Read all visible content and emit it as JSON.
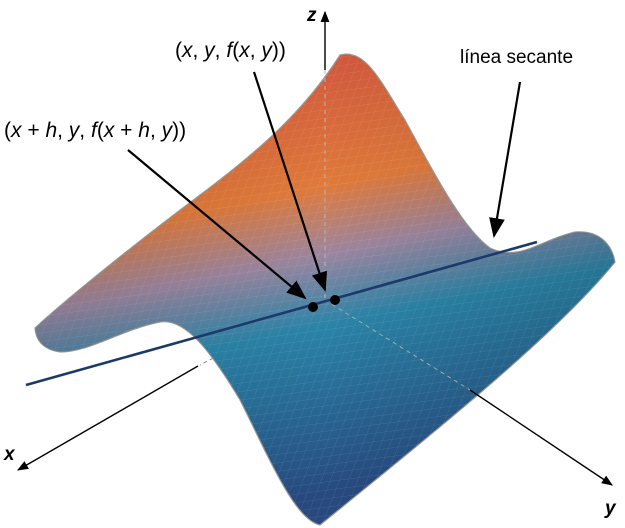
{
  "axes": {
    "x": "x",
    "y": "y",
    "z": "z"
  },
  "labels": {
    "point_a": {
      "open": "(",
      "x": "x",
      "sep1": ", ",
      "y": "y",
      "sep2": ", ",
      "f": "f",
      "open2": "(",
      "x2": "x",
      "sep3": ", ",
      "y2": "y",
      "close": "))"
    },
    "point_b": {
      "open": "(",
      "x": "x",
      "plus": " + ",
      "h": "h",
      "sep1": ", ",
      "y": "y",
      "sep2": ", ",
      "f": "f",
      "open2": "(",
      "x2": "x",
      "plus2": " + ",
      "h2": "h",
      "sep3": ", ",
      "y2": "y",
      "close": "))"
    },
    "secant": "línea secante"
  },
  "colors": {
    "surface_top": "#c9473f",
    "surface_mid": "#e07a3a",
    "surface_low": "#2a84a8",
    "surface_bottom": "#27497e",
    "secant_line": "#1b3a6b",
    "axis": "#000000"
  }
}
